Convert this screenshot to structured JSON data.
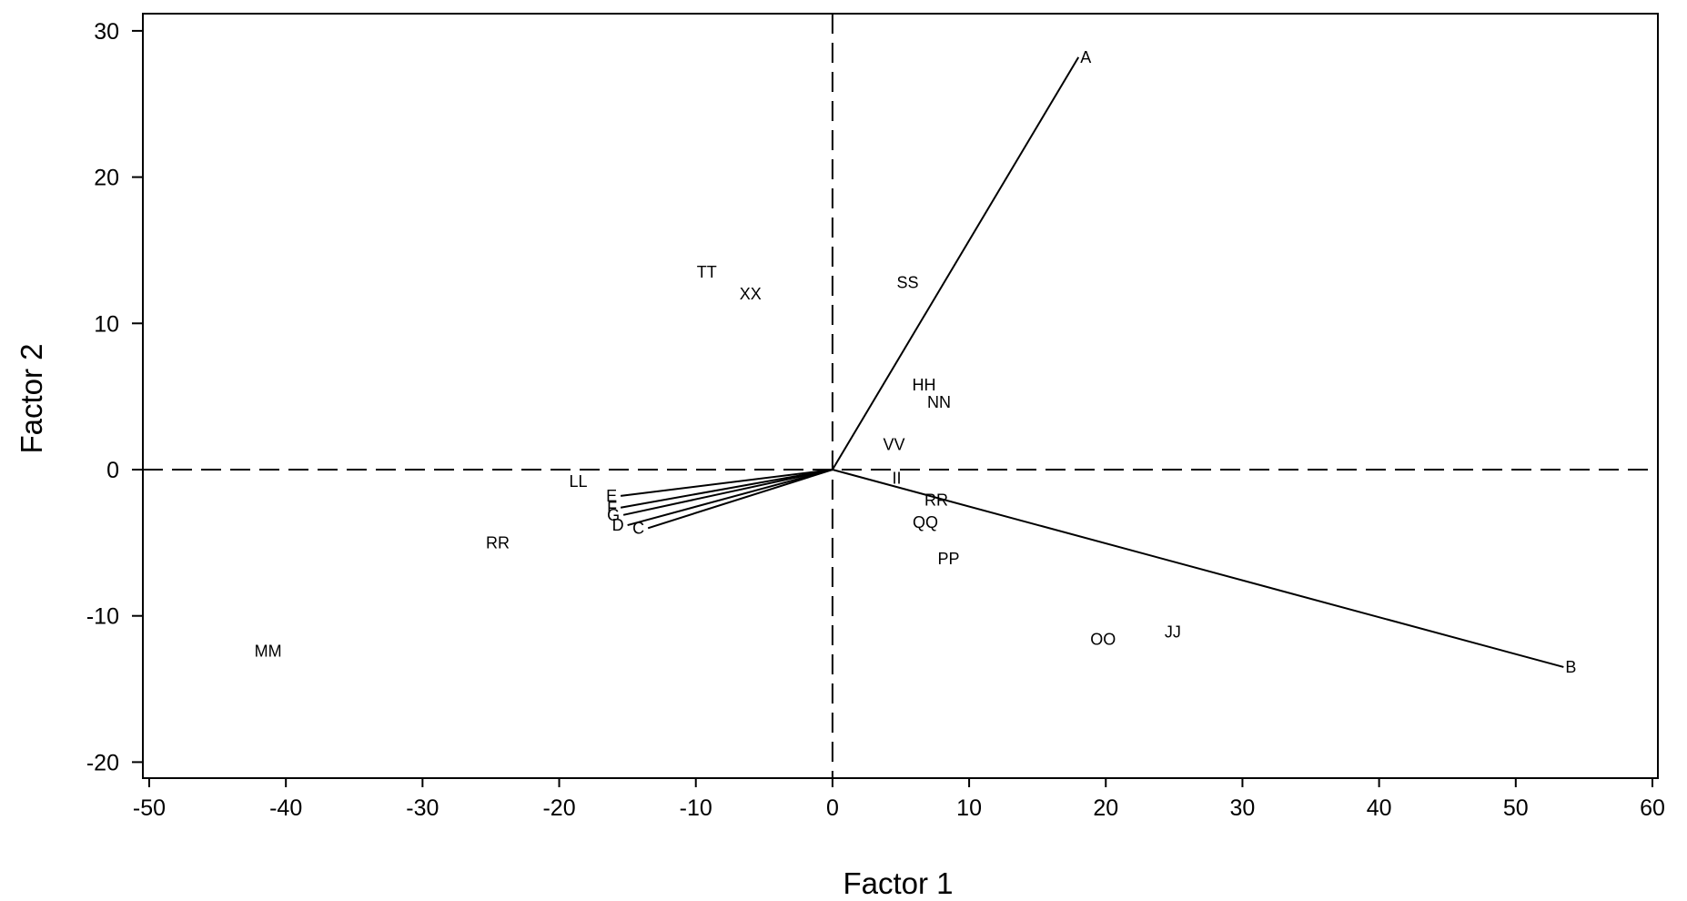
{
  "chart_data": {
    "type": "scatter",
    "subtype": "biplot",
    "title": "",
    "xlabel": "Factor 1",
    "ylabel": "Factor 2",
    "xlim": [
      -50,
      60
    ],
    "ylim": [
      -20,
      30
    ],
    "x_ticks": [
      -50,
      -40,
      -30,
      -20,
      -10,
      0,
      10,
      20,
      30,
      40,
      50,
      60
    ],
    "y_ticks": [
      -20,
      -10,
      0,
      10,
      20,
      30
    ],
    "grid": false,
    "reference_lines": {
      "x": 0,
      "y": 0,
      "style": "dashed"
    },
    "vectors": [
      {
        "label": "A",
        "x": 18,
        "y": 28.2
      },
      {
        "label": "B",
        "x": 53.5,
        "y": -13.5
      },
      {
        "label": "C",
        "x": -13.5,
        "y": -4
      },
      {
        "label": "D",
        "x": -15,
        "y": -3.8
      },
      {
        "label": "E",
        "x": -15.5,
        "y": -1.8
      },
      {
        "label": "F",
        "x": -15.5,
        "y": -2.6
      },
      {
        "label": "G",
        "x": -15.3,
        "y": -3.1
      }
    ],
    "points": [
      {
        "label": "TT",
        "x": -9.2,
        "y": 13.5
      },
      {
        "label": "XX",
        "x": -6,
        "y": 12
      },
      {
        "label": "SS",
        "x": 5.5,
        "y": 12.8
      },
      {
        "label": "HH",
        "x": 6.7,
        "y": 5.8
      },
      {
        "label": "NN",
        "x": 7.8,
        "y": 4.6
      },
      {
        "label": "VV",
        "x": 4.5,
        "y": 1.7
      },
      {
        "label": "II",
        "x": 4.7,
        "y": -0.6
      },
      {
        "label": "RR",
        "x": 7.6,
        "y": -2.1
      },
      {
        "label": "QQ",
        "x": 6.8,
        "y": -3.6
      },
      {
        "label": "PP",
        "x": 8.5,
        "y": -6.1
      },
      {
        "label": "LL",
        "x": -18.6,
        "y": -0.8
      },
      {
        "label": "RR",
        "x": -24.5,
        "y": -5
      },
      {
        "label": "MM",
        "x": -41.3,
        "y": -12.4
      },
      {
        "label": "OO",
        "x": 19.8,
        "y": -11.6
      },
      {
        "label": "JJ",
        "x": 24.9,
        "y": -11.1
      }
    ]
  }
}
